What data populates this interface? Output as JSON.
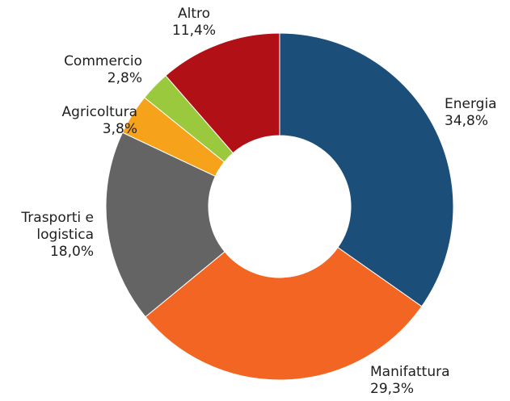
{
  "chart_data": {
    "type": "donut",
    "categories": [
      "Energia",
      "Manifattura",
      "Trasporti e logistica",
      "Agricoltura",
      "Commercio",
      "Altro"
    ],
    "values": [
      34.8,
      29.3,
      18.0,
      3.8,
      2.8,
      11.4
    ],
    "value_labels": [
      "34,8%",
      "29,3%",
      "18,0%",
      "3,8%",
      "2,8%",
      "11,4%"
    ],
    "colors": [
      "#1b4f7a",
      "#f26522",
      "#646464",
      "#f7a21b",
      "#9bc93d",
      "#b11116"
    ]
  }
}
